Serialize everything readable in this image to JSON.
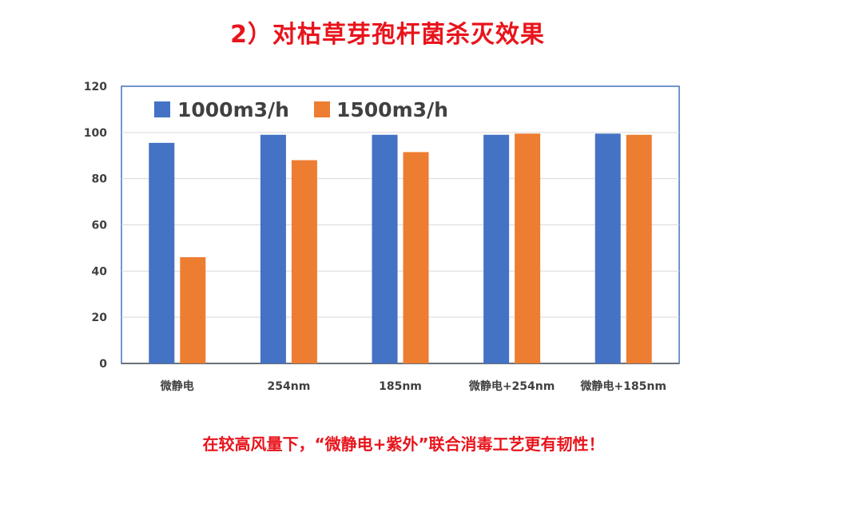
{
  "header": {
    "title": "2）对枯草芽孢杆菌杀灭效果"
  },
  "footer": {
    "note": "在较高风量下，“微静电+紫外”联合消毒工艺更有韧性！"
  },
  "chart_data": {
    "type": "bar",
    "title": "",
    "xlabel": "",
    "ylabel": "",
    "categories": [
      "微静电",
      "254nm",
      "185nm",
      "微静电+254nm",
      "微静电+185nm"
    ],
    "series": [
      {
        "name": "1000m3/h",
        "color": "#4472c4",
        "values": [
          95.5,
          99.0,
          99.0,
          99.0,
          99.5
        ]
      },
      {
        "name": "1500m3/h",
        "color": "#ed7d31",
        "values": [
          46.0,
          88.0,
          91.5,
          99.5,
          99.0
        ]
      }
    ],
    "ylim": [
      0,
      120
    ],
    "yticks": [
      0,
      20,
      40,
      60,
      80,
      100,
      120
    ],
    "grid": true,
    "legend_position": "top-left"
  }
}
